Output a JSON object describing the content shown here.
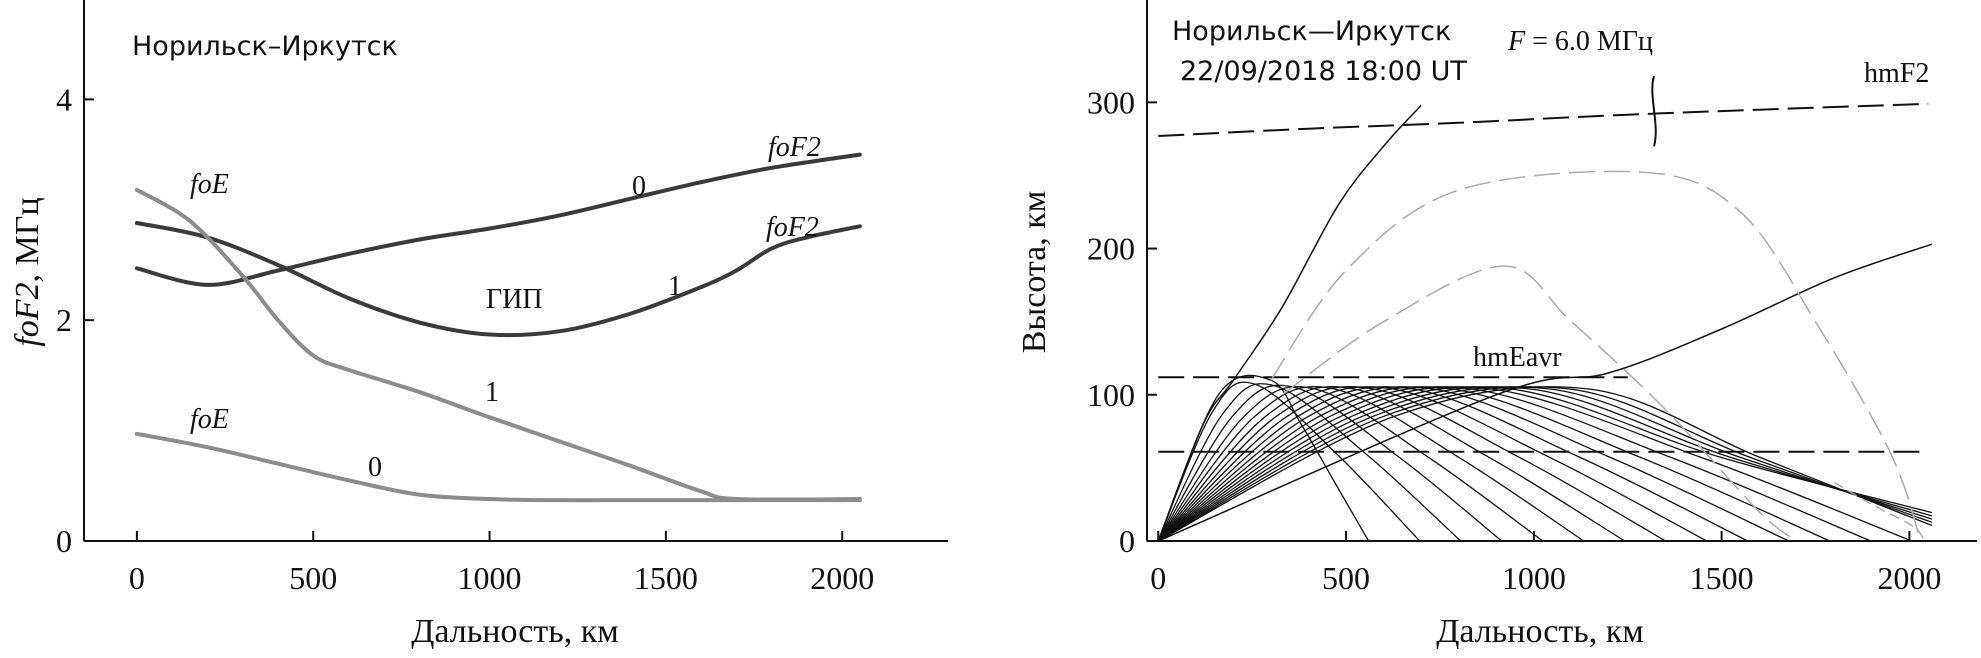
{
  "chart_data": [
    {
      "type": "line",
      "title": "Норильск–Иркутск",
      "xlabel": "Дальность, км",
      "ylabel_italic": "foF2",
      "ylabel_rest": ", МГц",
      "xlim": [
        -150,
        2300
      ],
      "ylim": [
        0,
        4.9
      ],
      "xticks": [
        0,
        500,
        1000,
        1500,
        2000
      ],
      "yticks": [
        0,
        2,
        4
      ],
      "series": [
        {
          "name": "foF2 0",
          "color": "#3a3a3a",
          "x": [
            0,
            200,
            400,
            600,
            800,
            1000,
            1200,
            1400,
            1600,
            1800,
            2050
          ],
          "y": [
            2.47,
            2.32,
            2.45,
            2.6,
            2.73,
            2.83,
            2.95,
            3.1,
            3.25,
            3.38,
            3.5
          ]
        },
        {
          "name": "foF2 1",
          "color": "#3a3a3a",
          "x": [
            0,
            200,
            400,
            600,
            800,
            1000,
            1200,
            1400,
            1600,
            1700,
            1800,
            1900,
            2050
          ],
          "y": [
            2.88,
            2.75,
            2.5,
            2.2,
            1.98,
            1.87,
            1.9,
            2.06,
            2.3,
            2.45,
            2.65,
            2.75,
            2.85
          ]
        },
        {
          "name": "foE 1",
          "color": "#8c8c8c",
          "x": [
            0,
            150,
            300,
            400,
            500,
            600,
            800,
            1000,
            1200,
            1400,
            1600,
            1700,
            2050
          ],
          "y": [
            3.18,
            2.9,
            2.4,
            2.0,
            1.68,
            1.55,
            1.35,
            1.12,
            0.9,
            0.68,
            0.45,
            0.38,
            0.38
          ]
        },
        {
          "name": "foE 0",
          "color": "#8c8c8c",
          "x": [
            0,
            200,
            400,
            600,
            800,
            1000,
            1200,
            1400,
            1600,
            2050
          ],
          "y": [
            0.97,
            0.85,
            0.7,
            0.55,
            0.42,
            0.38,
            0.37,
            0.37,
            0.37,
            0.37
          ]
        }
      ],
      "annotations": {
        "foE_top": "foE",
        "foE_bottom": "foE",
        "foF2_top": "foF2",
        "foF2_right": "foF2",
        "label_0_upper": "0",
        "label_1_upper": "1",
        "label_1_lower": "1",
        "label_0_lower": "0",
        "gip": "ГИП"
      }
    },
    {
      "type": "line",
      "title_line1": "Норильск—Иркутск",
      "title_line2": "22/09/2018 18:00 UT",
      "frequency_label": "F = 6.0 МГц",
      "freq_italic": "F",
      "freq_rest": " = 6.0 МГц",
      "xlabel": "Дальность, км",
      "ylabel": "Высота, км",
      "xlim": [
        -30,
        2180
      ],
      "ylim": [
        0,
        370
      ],
      "xticks": [
        0,
        500,
        1000,
        1500,
        2000
      ],
      "yticks": [
        0,
        100,
        200,
        300
      ],
      "reference_lines": [
        {
          "name": "hmF2",
          "x": [
            0,
            400,
            800,
            1200,
            1600,
            2050
          ],
          "y": [
            277,
            282,
            286,
            291,
            295,
            299
          ]
        },
        {
          "name": "hmEavr",
          "x": [
            0,
            1250
          ],
          "y": [
            112,
            112
          ]
        },
        {
          "name": "lower",
          "x": [
            0,
            2050
          ],
          "y": [
            61,
            61
          ]
        }
      ],
      "labels": {
        "hmF2": "hmF2",
        "hmEavr": "hmEavr"
      }
    }
  ]
}
